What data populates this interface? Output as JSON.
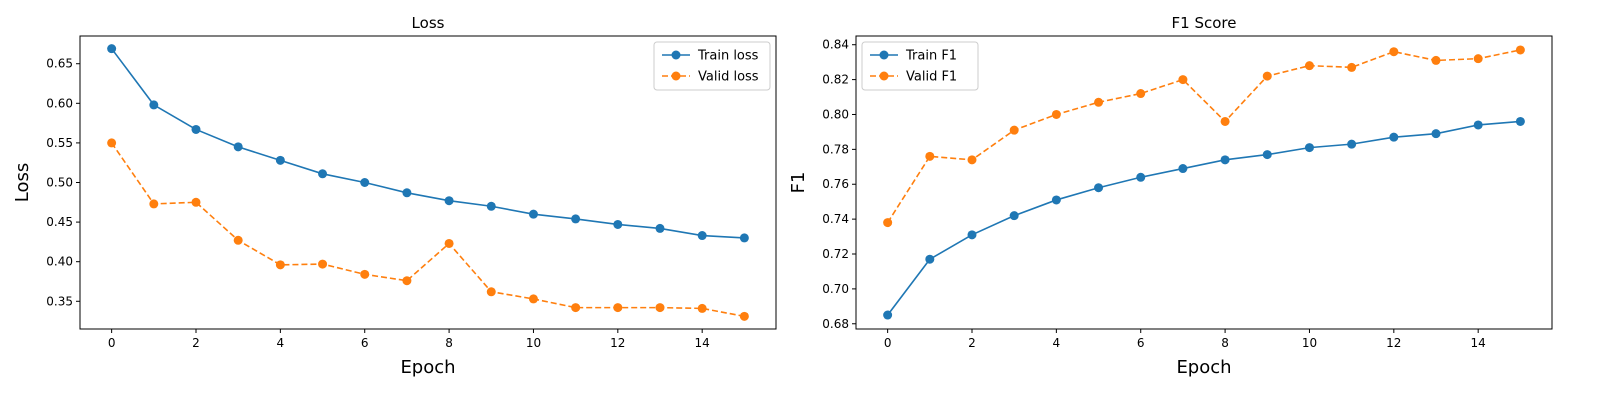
{
  "colors": {
    "train": "#1f77b4",
    "valid": "#ff7f0e",
    "axis": "#000000",
    "legend_border": "#cccccc"
  },
  "chart_data": [
    {
      "type": "line",
      "title": "Loss",
      "xlabel": "Epoch",
      "ylabel": "Loss",
      "xlim": [
        -0.75,
        15.75
      ],
      "ylim": [
        0.315,
        0.685
      ],
      "xticks": [
        0,
        2,
        4,
        6,
        8,
        10,
        12,
        14
      ],
      "yticks": [
        0.35,
        0.4,
        0.45,
        0.5,
        0.55,
        0.6,
        0.65
      ],
      "ytick_labels": [
        "0.35",
        "0.40",
        "0.45",
        "0.50",
        "0.55",
        "0.60",
        "0.65"
      ],
      "grid": false,
      "legend": "top-right",
      "x": [
        0,
        1,
        2,
        3,
        4,
        5,
        6,
        7,
        8,
        9,
        10,
        11,
        12,
        13,
        14,
        15
      ],
      "series": [
        {
          "name": "Train loss",
          "color": "#1f77b4",
          "style": "solid",
          "marker": "circle",
          "values": [
            0.669,
            0.598,
            0.567,
            0.545,
            0.528,
            0.511,
            0.5,
            0.487,
            0.477,
            0.47,
            0.46,
            0.454,
            0.447,
            0.442,
            0.433,
            0.43
          ]
        },
        {
          "name": "Valid loss",
          "color": "#ff7f0e",
          "style": "dashed",
          "marker": "circle",
          "values": [
            0.55,
            0.473,
            0.475,
            0.427,
            0.396,
            0.397,
            0.384,
            0.376,
            0.423,
            0.362,
            0.353,
            0.342,
            0.342,
            0.342,
            0.341,
            0.331
          ]
        }
      ]
    },
    {
      "type": "line",
      "title": "F1 Score",
      "xlabel": "Epoch",
      "ylabel": "F1",
      "xlim": [
        -0.75,
        15.75
      ],
      "ylim": [
        0.677,
        0.845
      ],
      "xticks": [
        0,
        2,
        4,
        6,
        8,
        10,
        12,
        14
      ],
      "yticks": [
        0.68,
        0.7,
        0.72,
        0.74,
        0.76,
        0.78,
        0.8,
        0.82,
        0.84
      ],
      "ytick_labels": [
        "0.68",
        "0.70",
        "0.72",
        "0.74",
        "0.76",
        "0.78",
        "0.80",
        "0.82",
        "0.84"
      ],
      "grid": false,
      "legend": "top-left",
      "x": [
        0,
        1,
        2,
        3,
        4,
        5,
        6,
        7,
        8,
        9,
        10,
        11,
        12,
        13,
        14,
        15
      ],
      "series": [
        {
          "name": "Train F1",
          "color": "#1f77b4",
          "style": "solid",
          "marker": "circle",
          "values": [
            0.685,
            0.717,
            0.731,
            0.742,
            0.751,
            0.758,
            0.764,
            0.769,
            0.774,
            0.777,
            0.781,
            0.783,
            0.787,
            0.789,
            0.794,
            0.796
          ]
        },
        {
          "name": "Valid F1",
          "color": "#ff7f0e",
          "style": "dashed",
          "marker": "circle",
          "values": [
            0.738,
            0.776,
            0.774,
            0.791,
            0.8,
            0.807,
            0.812,
            0.82,
            0.796,
            0.822,
            0.828,
            0.827,
            0.836,
            0.831,
            0.832,
            0.837
          ]
        }
      ]
    }
  ]
}
